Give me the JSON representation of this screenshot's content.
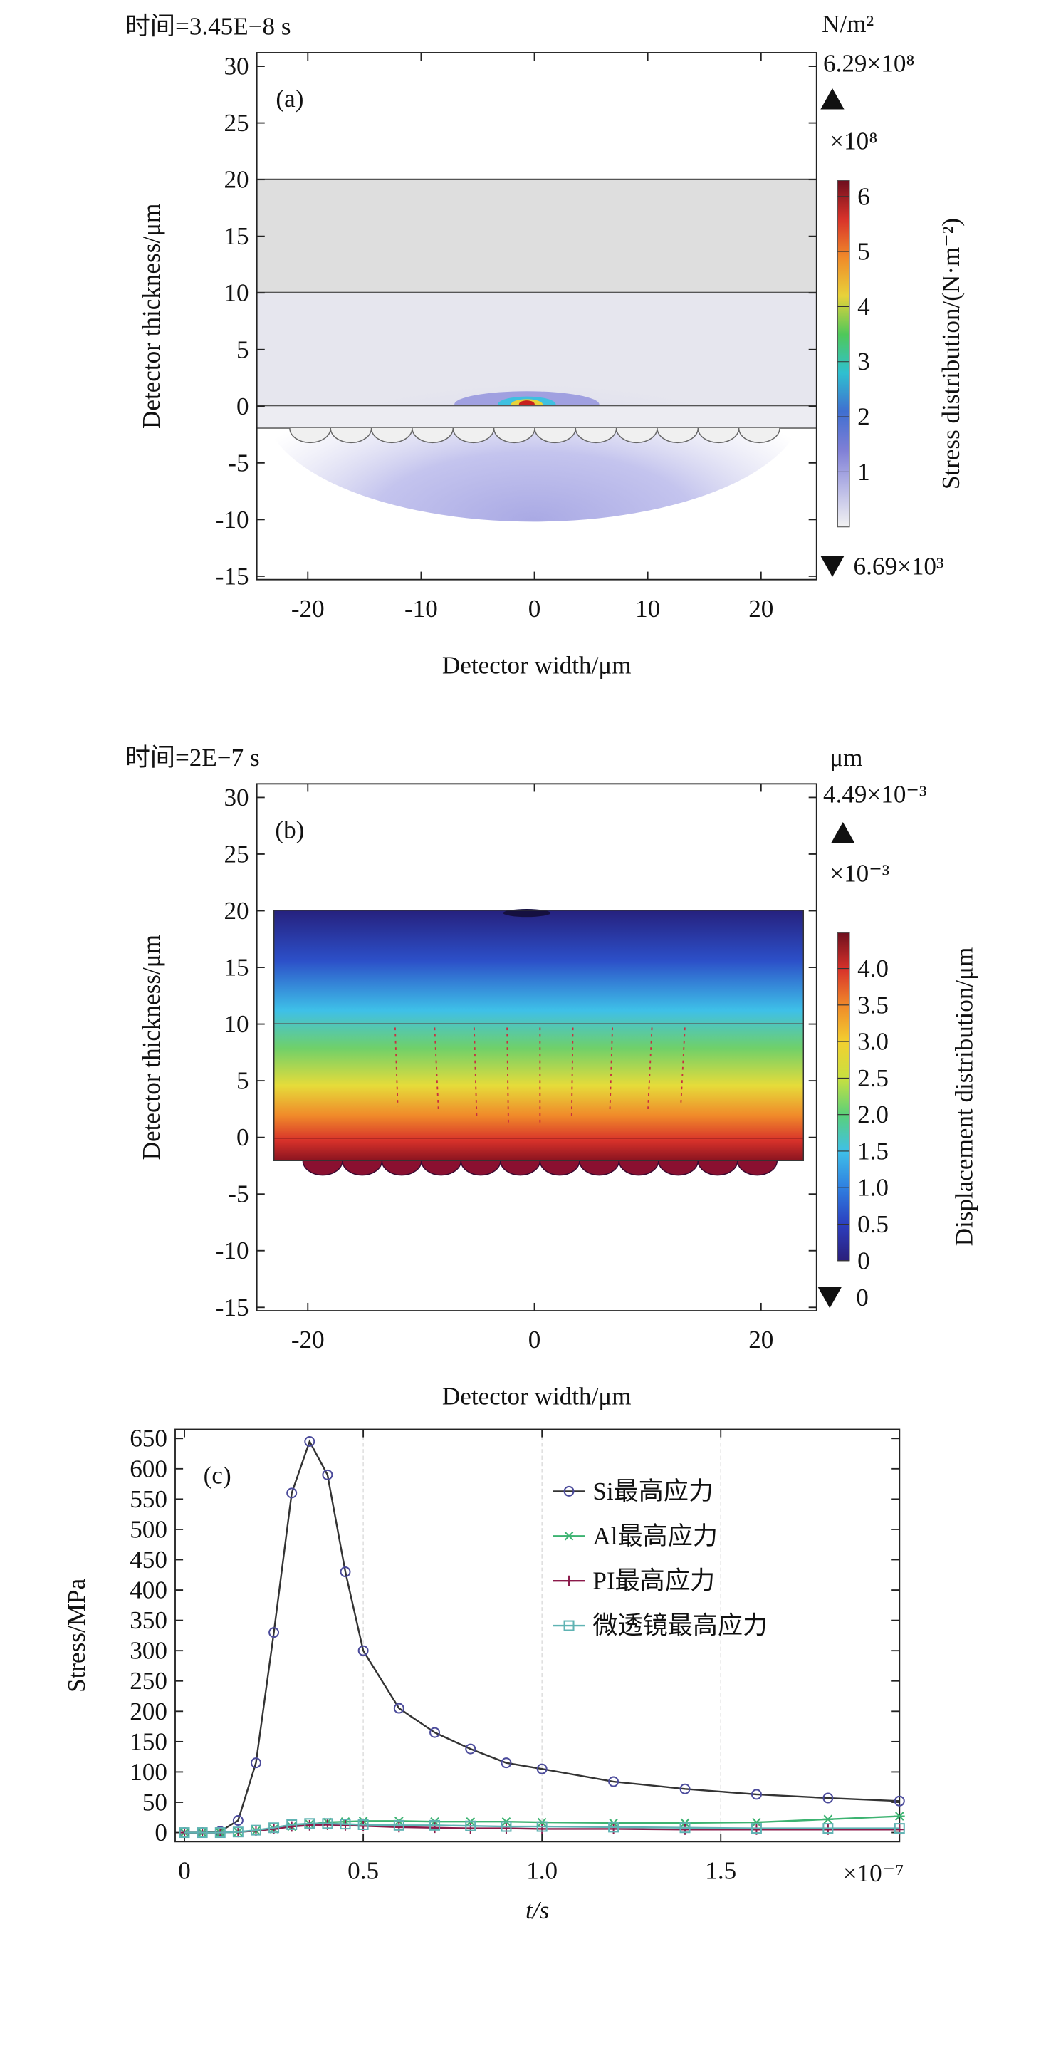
{
  "chart_data": [
    {
      "type": "heatmap",
      "title": "时间=3.45E−8 s",
      "panel_label": "(a)",
      "xlabel": "Detector width/μm",
      "ylabel": "Detector thickness/μm",
      "xlim": [
        -24.5,
        24.9
      ],
      "xticks": [
        -20,
        -10,
        0,
        10,
        20
      ],
      "ylim": [
        -15.3,
        31.2
      ],
      "yticks": [
        -15,
        -10,
        -5,
        0,
        5,
        10,
        15,
        20,
        25,
        30
      ],
      "colorbar_unit": "N/m²",
      "colorbar_max_label": "6.29×10⁸",
      "colorbar_min_label": "6.69×10³",
      "colorbar_multiplier": "×10⁸",
      "colorbar_label": "Stress distribution/(N·m⁻²)",
      "clim": [
        0,
        6.29
      ],
      "cticks": [
        1,
        2,
        3,
        4,
        5,
        6
      ],
      "colormap": [
        "#f2f2f2",
        "#b9b9e6",
        "#7f7fd6",
        "#3f6fd0",
        "#2fc0d0",
        "#4fc85a",
        "#e8d23a",
        "#f08a2a",
        "#d8322a",
        "#6e0f1e"
      ]
    },
    {
      "type": "heatmap",
      "title": "时间=2E−7 s",
      "panel_label": "(b)",
      "xlabel": "Detector width/μm",
      "ylabel": "Detector thickness/μm",
      "xlim": [
        -24.5,
        24.9
      ],
      "xticks": [
        -20,
        0,
        20
      ],
      "ylim": [
        -15.3,
        31.2
      ],
      "yticks": [
        -15,
        -10,
        -5,
        0,
        5,
        10,
        15,
        20,
        25,
        30
      ],
      "colorbar_unit": "μm",
      "colorbar_max_label": "4.49×10⁻³",
      "colorbar_min_label": "0",
      "colorbar_multiplier": "×10⁻³",
      "colorbar_label": "Displacement distribution/μm",
      "clim": [
        0,
        4.49
      ],
      "cticks": [
        0,
        0.5,
        {
          "value": 1,
          "label": "1.0"
        },
        1.5,
        {
          "value": 2,
          "label": "2.0"
        },
        2.5,
        {
          "value": 3,
          "label": "3.0"
        },
        3.5,
        {
          "value": 4,
          "label": "4.0"
        }
      ],
      "colormap": [
        "#2b1f7a",
        "#2c3fbf",
        "#2f7fe0",
        "#3fc0e8",
        "#5ad07a",
        "#c8e040",
        "#f2d030",
        "#f08a2a",
        "#d8322a",
        "#6e0f1e"
      ]
    },
    {
      "type": "line",
      "panel_label": "(c)",
      "xlabel": "t/s",
      "ylabel": "Stress/MPa",
      "x_multiplier": "×10⁻⁷",
      "x": [
        0,
        0.05,
        0.1,
        0.15,
        0.2,
        0.25,
        0.3,
        0.35,
        0.4,
        0.45,
        0.5,
        0.6,
        0.7,
        0.8,
        0.9,
        1.0,
        1.2,
        1.4,
        1.6,
        1.8,
        2.0
      ],
      "xlim": [
        -0.026,
        2.0
      ],
      "xticks": [
        0,
        0.5,
        {
          "value": 1,
          "label": "1.0"
        },
        1.5
      ],
      "ylim": [
        -15,
        665
      ],
      "yticks": [
        0,
        50,
        100,
        150,
        200,
        250,
        300,
        350,
        400,
        450,
        500,
        550,
        600,
        650
      ],
      "grid": true,
      "series": [
        {
          "name": "Si最高应力",
          "color": "#4b4b9b",
          "marker": "o",
          "values": [
            0,
            0,
            2,
            20,
            115,
            330,
            560,
            645,
            590,
            430,
            300,
            205,
            165,
            138,
            115,
            105,
            84,
            72,
            63,
            57,
            52
          ]
        },
        {
          "name": "Al最高应力",
          "color": "#3cb371",
          "marker": "*",
          "values": [
            0,
            0,
            0,
            1,
            3,
            6,
            10,
            14,
            17,
            18,
            19,
            19,
            18,
            18,
            18,
            17,
            16,
            16,
            17,
            22,
            27
          ]
        },
        {
          "name": "PI最高应力",
          "color": "#8b1a4a",
          "marker": "+",
          "values": [
            0,
            0,
            0,
            1,
            3,
            6,
            10,
            12,
            13,
            12,
            11,
            9,
            8,
            7,
            7,
            6,
            6,
            5,
            5,
            5,
            5
          ]
        },
        {
          "name": "微透镜最高应力",
          "color": "#5fb3b3",
          "marker": "s",
          "values": [
            0,
            0,
            0,
            1,
            4,
            8,
            13,
            15,
            15,
            14,
            13,
            12,
            12,
            11,
            10,
            10,
            9,
            8,
            7,
            7,
            7
          ]
        }
      ]
    }
  ]
}
